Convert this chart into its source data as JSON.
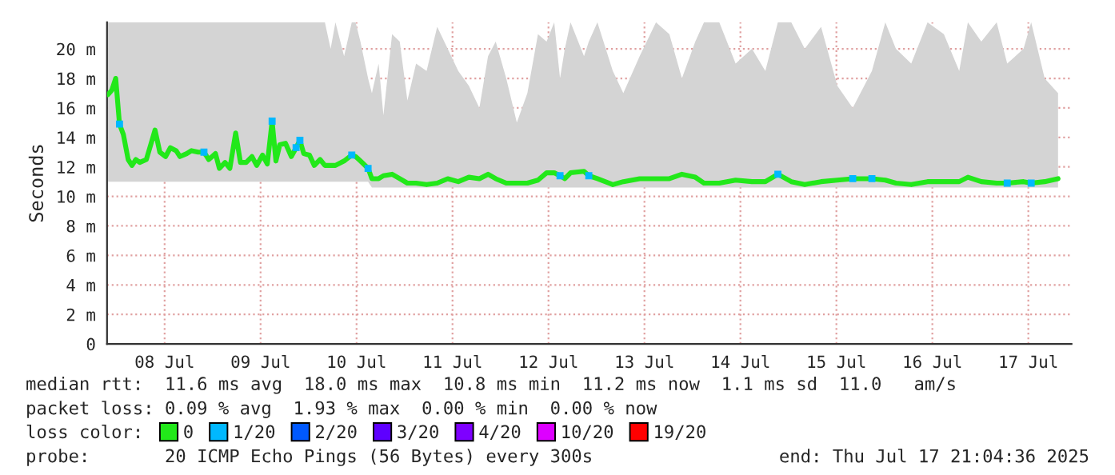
{
  "chart_data": {
    "type": "line",
    "ylabel": "Seconds",
    "legend_title": "loss color:",
    "annotations": [
      "median rtt:  11.6 ms avg  18.0 ms max  10.8 ms min  11.2 ms now  1.1 ms sd  11.0   am/s",
      "packet loss: 0.09 % avg  1.93 % max  0.00 % min  0.00 % now",
      "probe:       20 ICMP Echo Pings (56 Bytes) every 300s",
      "end: Thu Jul 17 21:04:36 2025"
    ],
    "xlim": [
      "2025-07-07T21:36",
      "2025-07-17T22:48"
    ],
    "xticks": [
      {
        "value": "2025-07-08T12:00",
        "label": "08 Jul"
      },
      {
        "value": "2025-07-09T12:00",
        "label": "09 Jul"
      },
      {
        "value": "2025-07-10T12:00",
        "label": "10 Jul"
      },
      {
        "value": "2025-07-11T12:00",
        "label": "11 Jul"
      },
      {
        "value": "2025-07-12T12:00",
        "label": "12 Jul"
      },
      {
        "value": "2025-07-13T12:00",
        "label": "13 Jul"
      },
      {
        "value": "2025-07-14T12:00",
        "label": "14 Jul"
      },
      {
        "value": "2025-07-15T12:00",
        "label": "15 Jul"
      },
      {
        "value": "2025-07-16T12:00",
        "label": "16 Jul"
      },
      {
        "value": "2025-07-17T12:00",
        "label": "17 Jul"
      }
    ],
    "ylim": [
      0,
      21.8
    ],
    "yticks": [
      0,
      {
        "value": 2,
        "label": "2 m"
      },
      {
        "value": 4,
        "label": "4 m"
      },
      {
        "value": 6,
        "label": "6 m"
      },
      {
        "value": 8,
        "label": "8 m"
      },
      {
        "value": 10,
        "label": "10 m"
      },
      {
        "value": 12,
        "label": "12 m"
      },
      {
        "value": 14,
        "label": "14 m"
      },
      {
        "value": 16,
        "label": "16 m"
      },
      {
        "value": 18,
        "label": "18 m"
      },
      {
        "value": 20,
        "label": "20 m"
      }
    ],
    "grid": true,
    "legend": "bottom",
    "series": [
      {
        "name": "0",
        "color": "#22e81a",
        "line_style": "solid",
        "marker": "none",
        "x": [
          "2025-07-07T21:50",
          "2025-07-07T22:48",
          "2025-07-07T23:46",
          "2025-07-08T00:43",
          "2025-07-08T01:41",
          "2025-07-08T02:53",
          "2025-07-08T03:50",
          "2025-07-08T04:48",
          "2025-07-08T05:46",
          "2025-07-08T07:26",
          "2025-07-08T08:38",
          "2025-07-08T09:36",
          "2025-07-08T10:48",
          "2025-07-08T12:14",
          "2025-07-08T13:26",
          "2025-07-08T14:53",
          "2025-07-08T15:50",
          "2025-07-08T17:31",
          "2025-07-08T18:43",
          "2025-07-08T20:24",
          "2025-07-08T21:50",
          "2025-07-08T23:02",
          "2025-07-09T00:43",
          "2025-07-09T01:41",
          "2025-07-09T03:07",
          "2025-07-09T04:19",
          "2025-07-09T05:46",
          "2025-07-09T06:58",
          "2025-07-09T08:24",
          "2025-07-09T09:50",
          "2025-07-09T11:02",
          "2025-07-09T12:29",
          "2025-07-09T13:41",
          "2025-07-09T14:53",
          "2025-07-09T15:50",
          "2025-07-09T16:48",
          "2025-07-09T18:14",
          "2025-07-09T19:41",
          "2025-07-09T20:53",
          "2025-07-09T21:50",
          "2025-07-09T22:48",
          "2025-07-10T00:14",
          "2025-07-10T01:26",
          "2025-07-10T02:53",
          "2025-07-10T04:05",
          "2025-07-10T05:31",
          "2025-07-10T06:43",
          "2025-07-10T08:53",
          "2025-07-10T10:48",
          "2025-07-10T11:46",
          "2025-07-10T12:58",
          "2025-07-10T14:53",
          "2025-07-10T15:50",
          "2025-07-10T17:31",
          "2025-07-10T18:43",
          "2025-07-10T20:53",
          "2025-07-10T22:48",
          "2025-07-11T00:43",
          "2025-07-11T02:53",
          "2025-07-11T05:31",
          "2025-07-11T08:10",
          "2025-07-11T10:48",
          "2025-07-11T13:26",
          "2025-07-11T16:05",
          "2025-07-11T18:43",
          "2025-07-11T20:53",
          "2025-07-11T22:48",
          "2025-07-12T01:26",
          "2025-07-12T04:05",
          "2025-07-12T06:43",
          "2025-07-12T09:22",
          "2025-07-12T11:31",
          "2025-07-12T13:26",
          "2025-07-12T14:53",
          "2025-07-12T16:05",
          "2025-07-12T17:31",
          "2025-07-12T20:53",
          "2025-07-12T22:05",
          "2025-07-13T00:14",
          "2025-07-13T04:05",
          "2025-07-13T06:43",
          "2025-07-13T10:48",
          "2025-07-13T14:53",
          "2025-07-13T18:14",
          "2025-07-13T21:22",
          "2025-07-14T00:43",
          "2025-07-14T02:53",
          "2025-07-14T06:43",
          "2025-07-14T10:48",
          "2025-07-14T14:53",
          "2025-07-14T18:14",
          "2025-07-14T21:22",
          "2025-07-15T00:43",
          "2025-07-15T04:05",
          "2025-07-15T08:10",
          "2025-07-15T12:14",
          "2025-07-15T16:05",
          "2025-07-15T20:53",
          "2025-07-16T00:14",
          "2025-07-16T02:53",
          "2025-07-16T06:43",
          "2025-07-16T10:48",
          "2025-07-16T14:53",
          "2025-07-16T18:43",
          "2025-07-16T20:53",
          "2025-07-17T00:14",
          "2025-07-17T04:05",
          "2025-07-17T06:43",
          "2025-07-17T10:48",
          "2025-07-17T12:43",
          "2025-07-17T16:05",
          "2025-07-17T19:26"
        ],
        "values": [
          16.9,
          17.2,
          18.0,
          14.9,
          14.2,
          12.5,
          12.1,
          12.5,
          12.3,
          12.5,
          13.6,
          14.5,
          13.0,
          12.7,
          13.3,
          13.1,
          12.7,
          12.9,
          13.1,
          13.0,
          13.0,
          12.5,
          12.9,
          11.9,
          12.3,
          11.9,
          14.3,
          12.3,
          12.3,
          12.7,
          12.1,
          12.8,
          12.2,
          15.1,
          12.4,
          13.5,
          13.6,
          12.7,
          13.3,
          13.8,
          12.9,
          12.8,
          12.1,
          12.5,
          12.1,
          12.1,
          12.1,
          12.4,
          12.8,
          12.7,
          12.4,
          11.9,
          11.2,
          11.2,
          11.4,
          11.5,
          11.2,
          10.9,
          10.9,
          10.8,
          10.9,
          11.2,
          11.0,
          11.3,
          11.2,
          11.5,
          11.2,
          10.9,
          10.9,
          10.9,
          11.1,
          11.6,
          11.6,
          11.4,
          11.2,
          11.6,
          11.7,
          11.4,
          11.2,
          10.8,
          11.0,
          11.2,
          11.2,
          11.2,
          11.5,
          11.3,
          10.9,
          10.9,
          11.1,
          11.0,
          11.0,
          11.5,
          11.0,
          10.8,
          11.0,
          11.1,
          11.2,
          11.2,
          11.1,
          10.9,
          10.8,
          11.0,
          11.0,
          11.0,
          11.3,
          11.0,
          10.9,
          10.9,
          11.0,
          10.9,
          11.0,
          11.2
        ],
        "lower": [
          11.0,
          11.0,
          11.0,
          11.0,
          11.0,
          11.0,
          11.0,
          11.0,
          11.0,
          11.0,
          11.0,
          11.0,
          11.0,
          11.0,
          11.0,
          11.0,
          11.0,
          11.0,
          11.0,
          11.0,
          11.0,
          11.0,
          11.0,
          11.0,
          11.0,
          11.0,
          11.0,
          11.0,
          11.0,
          11.0,
          11.0,
          11.0,
          11.0,
          11.0,
          11.0,
          11.0,
          11.0,
          11.0,
          11.0,
          11.0,
          11.0,
          11.0,
          11.0,
          11.0,
          11.0,
          11.0,
          11.0,
          11.0,
          11.0,
          11.0,
          11.0,
          11.0,
          10.6,
          10.6,
          10.6,
          10.6,
          10.6,
          10.6,
          10.6,
          10.6,
          10.6,
          10.6,
          10.6,
          10.6,
          10.6,
          10.6,
          10.6,
          10.6,
          10.6,
          10.6,
          10.6,
          10.6,
          10.6,
          10.6,
          10.6,
          10.6,
          10.6,
          10.6,
          10.6,
          10.6,
          10.6,
          10.6,
          10.6,
          10.6,
          10.6,
          10.6,
          10.6,
          10.6,
          10.6,
          10.6,
          10.6,
          10.6,
          10.6,
          10.6,
          10.6,
          10.6,
          10.6,
          10.6,
          10.6,
          10.6,
          10.6,
          10.6,
          10.6,
          10.6,
          10.6,
          10.6,
          10.6,
          10.6,
          10.6,
          10.6,
          10.6,
          10.6
        ],
        "upper": [
          21.8,
          21.8,
          21.8,
          21.8,
          21.8,
          21.8,
          21.8,
          21.8,
          21.8,
          21.8,
          21.8,
          21.8,
          21.8,
          21.8,
          21.8,
          21.8,
          21.8,
          21.8,
          21.8,
          21.8,
          21.8,
          21.8,
          21.8,
          21.8,
          21.8,
          21.8,
          21.8,
          21.8,
          21.8,
          21.8,
          21.8,
          21.8,
          21.8,
          21.8,
          21.8,
          21.8,
          21.8,
          21.8,
          21.8,
          21.8,
          21.8,
          21.8,
          21.8,
          21.8,
          21.8,
          20.0,
          21.8,
          19.5,
          21.8,
          21.8,
          20.5,
          18.0,
          17.0,
          19.0,
          15.5,
          21.0,
          20.5,
          16.5,
          19.0,
          18.5,
          21.5,
          20.0,
          18.5,
          17.5,
          16.0,
          19.5,
          20.5,
          18.0,
          15.0,
          17.0,
          21.0,
          20.5,
          21.8,
          18.0,
          20.0,
          21.8,
          19.5,
          20.5,
          21.8,
          18.5,
          17.0,
          19.5,
          21.8,
          21.0,
          18.0,
          20.5,
          21.8,
          21.8,
          19.0,
          20.0,
          18.5,
          21.8,
          21.8,
          20.0,
          21.5,
          17.5,
          16.0,
          18.5,
          21.8,
          20.0,
          19.0,
          21.8,
          21.0,
          18.5,
          21.8,
          20.5,
          21.8,
          19.0,
          20.0,
          21.8,
          18.0,
          17.0
        ]
      },
      {
        "name": "1/20",
        "type": "scatter",
        "color": "#00b8ff",
        "marker": "square",
        "x": [
          "2025-07-08T00:43",
          "2025-07-08T21:50",
          "2025-07-09T14:53",
          "2025-07-09T20:53",
          "2025-07-09T21:50",
          "2025-07-10T10:48",
          "2025-07-10T14:53",
          "2025-07-12T14:53",
          "2025-07-12T22:05",
          "2025-07-14T21:22",
          "2025-07-15T16:05",
          "2025-07-15T20:53",
          "2025-07-17T06:43",
          "2025-07-17T12:43"
        ],
        "values": [
          14.9,
          13.0,
          15.1,
          13.3,
          13.8,
          12.8,
          11.9,
          11.4,
          11.4,
          11.5,
          11.2,
          11.2,
          10.9,
          10.9
        ]
      },
      {
        "name": "2/20",
        "type": "scatter",
        "color": "#0059ff",
        "marker": "square"
      },
      {
        "name": "3/20",
        "type": "scatter",
        "color": "#5e00ff",
        "marker": "square"
      },
      {
        "name": "4/20",
        "type": "scatter",
        "color": "#7e00ff",
        "marker": "square"
      },
      {
        "name": "10/20",
        "type": "scatter",
        "color": "#dd00ff",
        "marker": "square"
      },
      {
        "name": "19/20",
        "type": "scatter",
        "color": "#ff0000",
        "marker": "square"
      }
    ]
  }
}
